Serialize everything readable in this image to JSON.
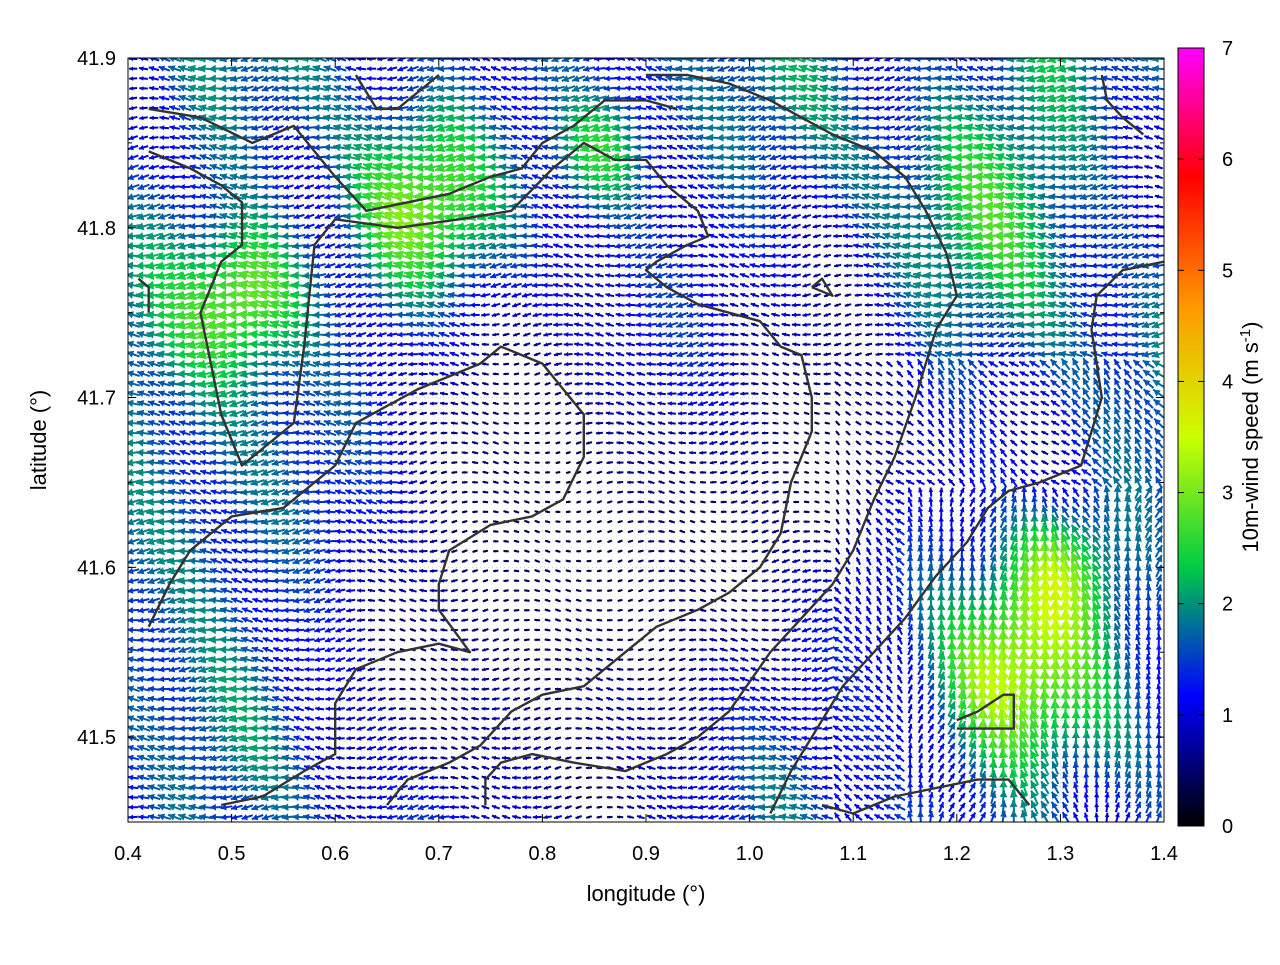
{
  "chart_data": {
    "type": "vector-field",
    "xlabel": "longitude (°)",
    "ylabel": "latitude (°)",
    "xlim": [
      0.4,
      1.4
    ],
    "ylim": [
      41.45,
      41.9
    ],
    "xticks": [
      "0.4",
      "0.5",
      "0.6",
      "0.7",
      "0.8",
      "0.9",
      "1.0",
      "1.1",
      "1.2",
      "1.3",
      "1.4"
    ],
    "yticks": [
      "41.5",
      "41.6",
      "41.7",
      "41.8",
      "41.9"
    ],
    "grid": true,
    "colorbar": {
      "label": "10m-wind speed (m s",
      "label_sup": "-1",
      "label_end": ")",
      "range": [
        0,
        7
      ],
      "ticks": [
        "0",
        "1",
        "2",
        "3",
        "4",
        "5",
        "6",
        "7"
      ],
      "palette": [
        "#000000",
        "#0000ff",
        "#00cc44",
        "#ccff00",
        "#ff9900",
        "#ff0000",
        "#ff00ff"
      ]
    },
    "vector_spacing": {
      "dlon": 0.01,
      "dlat": 0.0058
    },
    "contours": [
      [
        [
          0.42,
          41.87
        ],
        [
          0.47,
          41.865
        ],
        [
          0.52,
          41.85
        ],
        [
          0.56,
          41.86
        ],
        [
          0.6,
          41.83
        ],
        [
          0.63,
          41.81
        ],
        [
          0.67,
          41.815
        ],
        [
          0.71,
          41.82
        ],
        [
          0.75,
          41.83
        ],
        [
          0.78,
          41.835
        ],
        [
          0.8,
          41.85
        ],
        [
          0.83,
          41.86
        ],
        [
          0.86,
          41.875
        ],
        [
          0.9,
          41.875
        ],
        [
          0.93,
          41.87
        ]
      ],
      [
        [
          0.42,
          41.845
        ],
        [
          0.46,
          41.835
        ],
        [
          0.49,
          41.825
        ],
        [
          0.51,
          41.815
        ],
        [
          0.51,
          41.79
        ],
        [
          0.49,
          41.78
        ],
        [
          0.47,
          41.75
        ],
        [
          0.48,
          41.72
        ],
        [
          0.49,
          41.69
        ],
        [
          0.51,
          41.66
        ],
        [
          0.53,
          41.67
        ],
        [
          0.56,
          41.685
        ],
        [
          0.57,
          41.73
        ],
        [
          0.58,
          41.79
        ],
        [
          0.6,
          41.805
        ],
        [
          0.66,
          41.8
        ],
        [
          0.72,
          41.805
        ],
        [
          0.77,
          41.81
        ],
        [
          0.81,
          41.835
        ],
        [
          0.84,
          41.85
        ],
        [
          0.87,
          41.84
        ],
        [
          0.9,
          41.84
        ],
        [
          0.92,
          41.825
        ],
        [
          0.95,
          41.81
        ],
        [
          0.96,
          41.795
        ],
        [
          0.94,
          41.79
        ],
        [
          0.91,
          41.78
        ],
        [
          0.9,
          41.775
        ],
        [
          0.92,
          41.765
        ],
        [
          0.95,
          41.755
        ],
        [
          0.98,
          41.75
        ],
        [
          1.01,
          41.745
        ],
        [
          1.03,
          41.73
        ],
        [
          1.05,
          41.725
        ],
        [
          1.06,
          41.7
        ],
        [
          1.06,
          41.68
        ],
        [
          1.04,
          41.65
        ],
        [
          1.03,
          41.62
        ],
        [
          1.01,
          41.6
        ],
        [
          0.98,
          41.585
        ],
        [
          0.95,
          41.575
        ],
        [
          0.91,
          41.565
        ],
        [
          0.87,
          41.545
        ],
        [
          0.84,
          41.53
        ],
        [
          0.8,
          41.525
        ],
        [
          0.77,
          41.515
        ],
        [
          0.74,
          41.495
        ],
        [
          0.71,
          41.485
        ],
        [
          0.67,
          41.475
        ],
        [
          0.65,
          41.46
        ]
      ],
      [
        [
          0.42,
          41.565
        ],
        [
          0.44,
          41.59
        ],
        [
          0.46,
          41.61
        ],
        [
          0.5,
          41.63
        ],
        [
          0.55,
          41.635
        ],
        [
          0.57,
          41.645
        ],
        [
          0.6,
          41.66
        ],
        [
          0.62,
          41.685
        ],
        [
          0.65,
          41.695
        ],
        [
          0.68,
          41.705
        ],
        [
          0.72,
          41.715
        ],
        [
          0.74,
          41.72
        ],
        [
          0.76,
          41.73
        ],
        [
          0.8,
          41.72
        ],
        [
          0.82,
          41.705
        ],
        [
          0.84,
          41.69
        ],
        [
          0.84,
          41.665
        ],
        [
          0.82,
          41.64
        ],
        [
          0.79,
          41.63
        ],
        [
          0.75,
          41.625
        ],
        [
          0.71,
          41.61
        ],
        [
          0.7,
          41.59
        ],
        [
          0.7,
          41.575
        ],
        [
          0.73,
          41.55
        ],
        [
          0.7,
          41.555
        ],
        [
          0.66,
          41.55
        ],
        [
          0.62,
          41.54
        ],
        [
          0.6,
          41.52
        ],
        [
          0.6,
          41.49
        ],
        [
          0.57,
          41.48
        ],
        [
          0.53,
          41.465
        ],
        [
          0.49,
          41.46
        ]
      ],
      [
        [
          0.745,
          41.46
        ],
        [
          0.745,
          41.475
        ],
        [
          0.76,
          41.485
        ],
        [
          0.79,
          41.49
        ],
        [
          0.83,
          41.485
        ],
        [
          0.88,
          41.48
        ],
        [
          0.92,
          41.49
        ],
        [
          0.95,
          41.5
        ],
        [
          0.98,
          41.515
        ],
        [
          1.02,
          41.55
        ],
        [
          1.05,
          41.57
        ],
        [
          1.08,
          41.59
        ],
        [
          1.1,
          41.61
        ],
        [
          1.12,
          41.64
        ],
        [
          1.14,
          41.665
        ],
        [
          1.16,
          41.7
        ],
        [
          1.18,
          41.74
        ],
        [
          1.2,
          41.76
        ],
        [
          1.19,
          41.785
        ],
        [
          1.17,
          41.81
        ],
        [
          1.15,
          41.83
        ],
        [
          1.12,
          41.845
        ],
        [
          1.08,
          41.855
        ],
        [
          1.05,
          41.865
        ],
        [
          1.02,
          41.875
        ],
        [
          0.98,
          41.885
        ],
        [
          0.94,
          41.89
        ],
        [
          0.9,
          41.89
        ]
      ],
      [
        [
          1.02,
          41.455
        ],
        [
          1.04,
          41.48
        ],
        [
          1.06,
          41.5
        ],
        [
          1.09,
          41.53
        ],
        [
          1.12,
          41.55
        ],
        [
          1.15,
          41.57
        ],
        [
          1.18,
          41.595
        ],
        [
          1.21,
          41.615
        ],
        [
          1.23,
          41.635
        ],
        [
          1.25,
          41.645
        ],
        [
          1.28,
          41.65
        ],
        [
          1.3,
          41.655
        ],
        [
          1.32,
          41.66
        ],
        [
          1.33,
          41.68
        ],
        [
          1.34,
          41.7
        ],
        [
          1.335,
          41.72
        ],
        [
          1.33,
          41.74
        ],
        [
          1.335,
          41.76
        ],
        [
          1.36,
          41.775
        ],
        [
          1.4,
          41.78
        ]
      ],
      [
        [
          1.07,
          41.46
        ],
        [
          1.1,
          41.455
        ],
        [
          1.14,
          41.465
        ],
        [
          1.18,
          41.47
        ],
        [
          1.22,
          41.475
        ],
        [
          1.25,
          41.475
        ],
        [
          1.27,
          41.46
        ]
      ],
      [
        [
          1.2,
          41.51
        ],
        [
          1.22,
          41.515
        ],
        [
          1.245,
          41.525
        ],
        [
          1.255,
          41.525
        ],
        [
          1.255,
          41.505
        ],
        [
          1.2,
          41.505
        ]
      ],
      [
        [
          1.34,
          41.89
        ],
        [
          1.345,
          41.875
        ],
        [
          1.36,
          41.865
        ],
        [
          1.38,
          41.855
        ]
      ],
      [
        [
          0.62,
          41.89
        ],
        [
          0.64,
          41.87
        ],
        [
          0.66,
          41.87
        ],
        [
          0.68,
          41.88
        ],
        [
          0.7,
          41.89
        ]
      ],
      [
        [
          1.06,
          41.765
        ],
        [
          1.08,
          41.76
        ],
        [
          1.07,
          41.77
        ],
        [
          1.06,
          41.765
        ]
      ],
      [
        [
          0.41,
          41.77
        ],
        [
          0.42,
          41.765
        ],
        [
          0.42,
          41.75
        ]
      ]
    ],
    "speed_hotspots": [
      {
        "lon": 0.52,
        "lat": 41.76,
        "speed": 3.4,
        "radius": 0.06
      },
      {
        "lon": 0.68,
        "lat": 41.805,
        "speed": 3.0,
        "radius": 0.07
      },
      {
        "lon": 0.86,
        "lat": 41.845,
        "speed": 3.1,
        "radius": 0.05
      },
      {
        "lon": 1.24,
        "lat": 41.535,
        "speed": 3.3,
        "radius": 0.07
      },
      {
        "lon": 1.3,
        "lat": 41.6,
        "speed": 2.9,
        "radius": 0.05
      },
      {
        "lon": 0.45,
        "lat": 41.62,
        "speed": 2.2,
        "radius": 0.09
      },
      {
        "lon": 1.25,
        "lat": 41.84,
        "speed": 2.1,
        "radius": 0.12
      }
    ],
    "calm_zones": [
      {
        "lon": 0.82,
        "lat": 41.6,
        "radius": 0.2
      },
      {
        "lon": 1.08,
        "lat": 41.66,
        "radius": 0.09
      }
    ]
  }
}
